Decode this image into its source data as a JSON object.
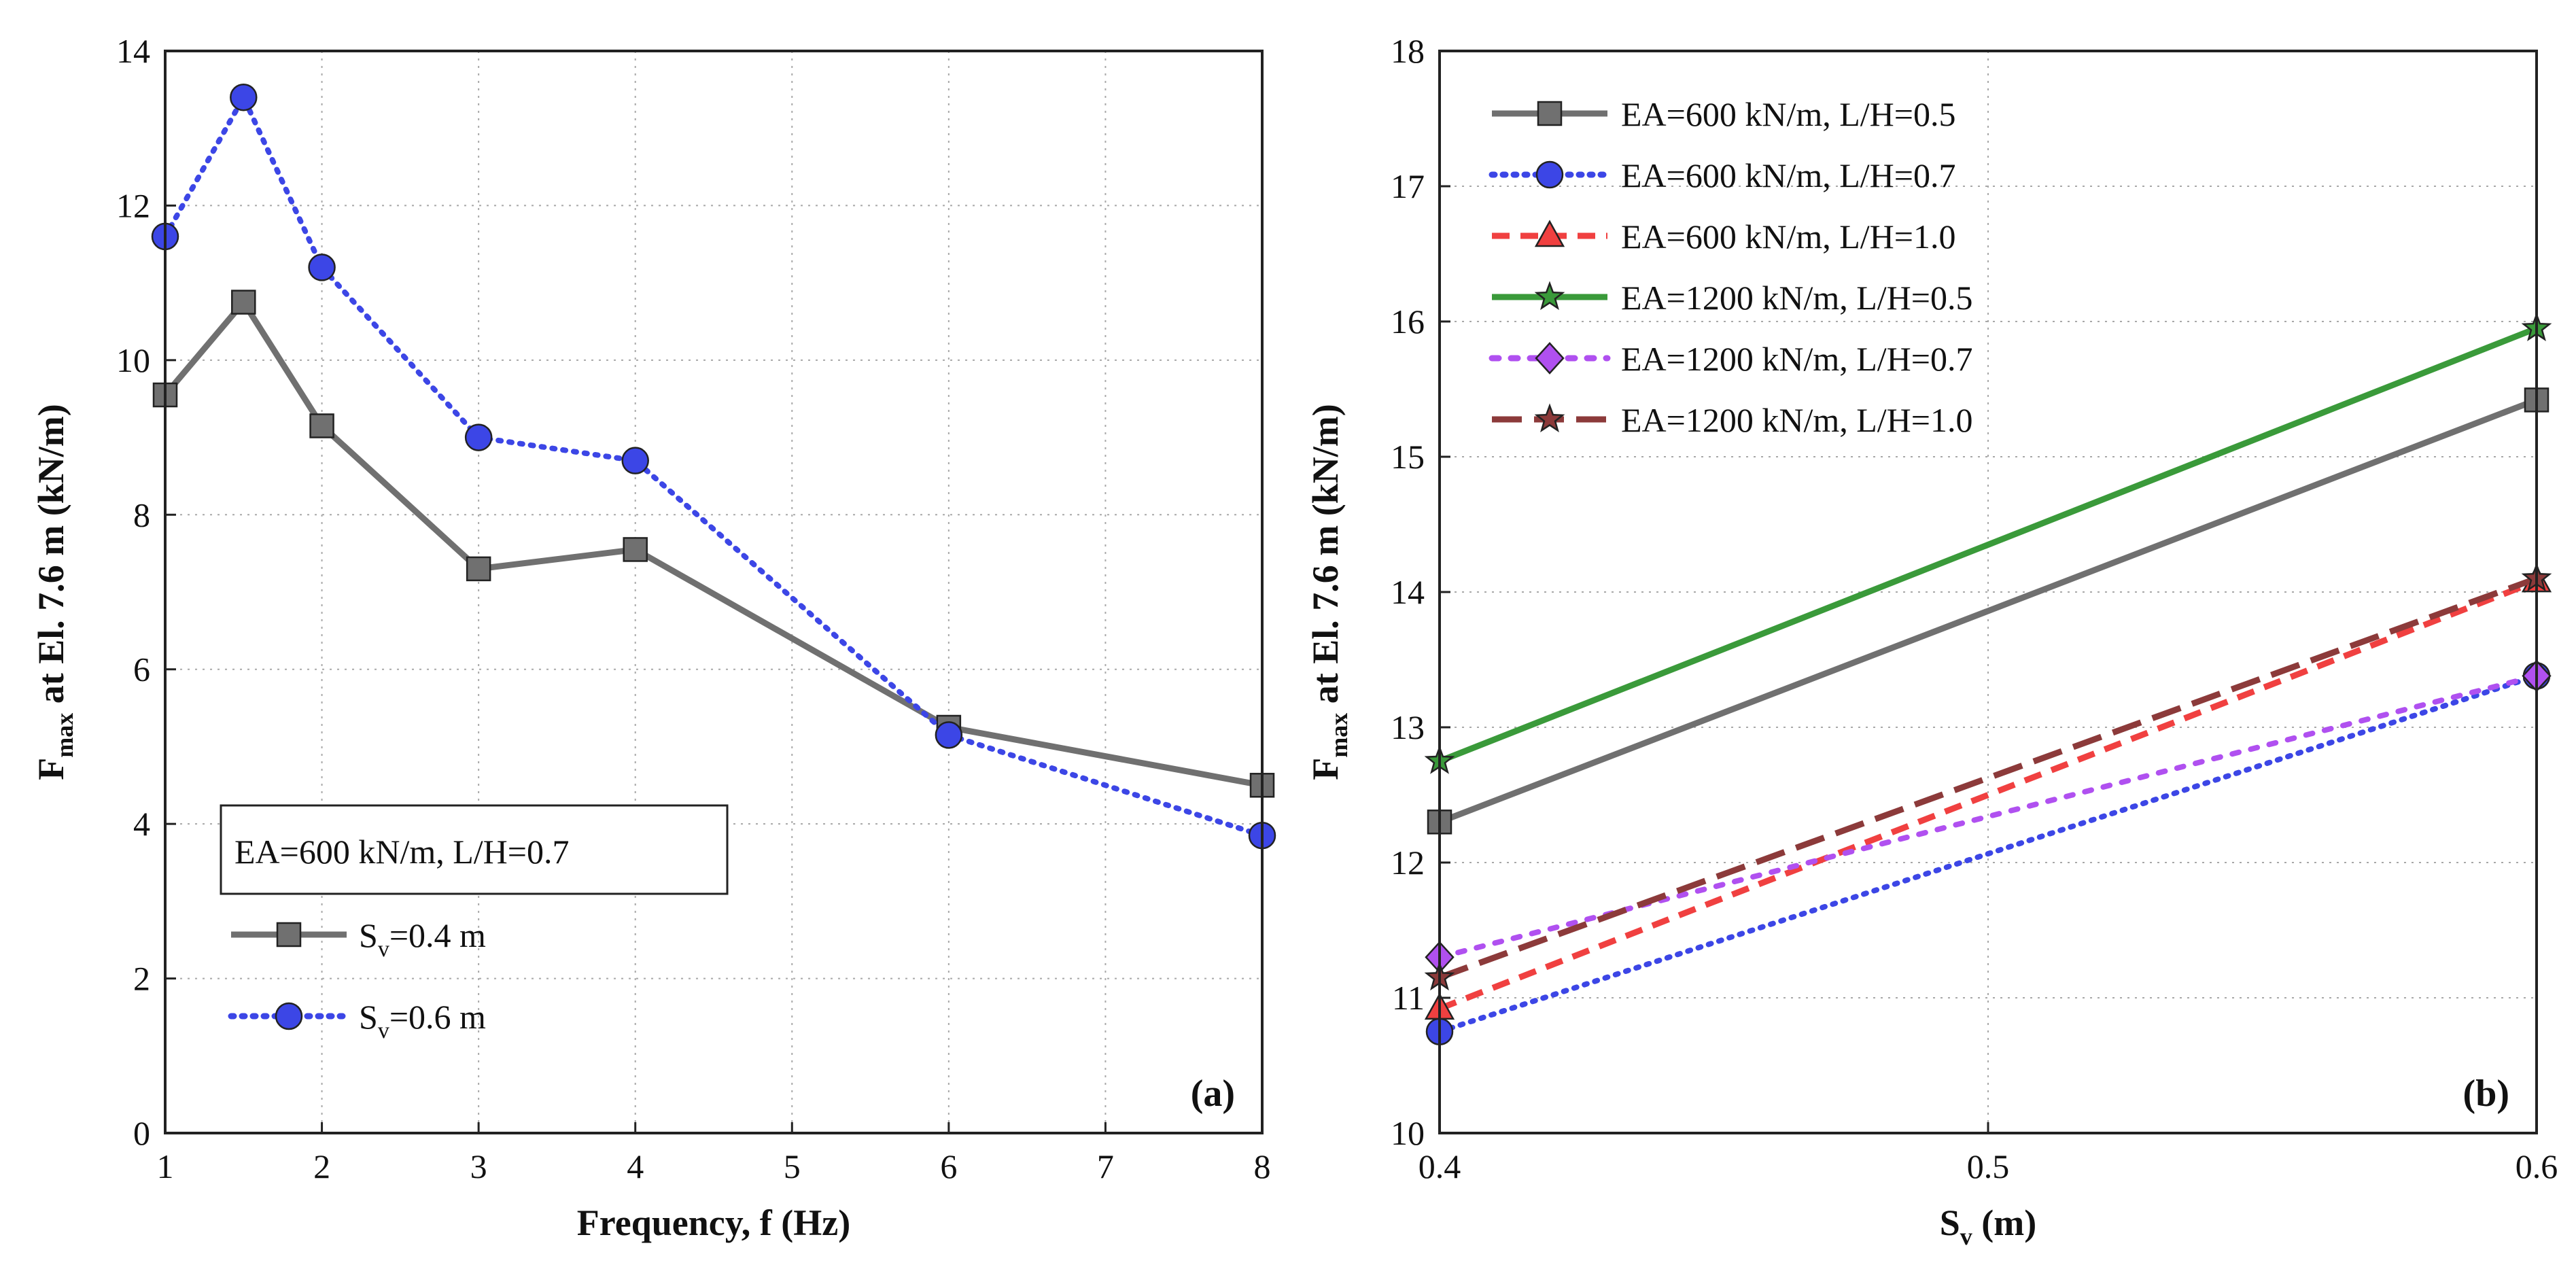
{
  "chart_data": [
    {
      "type": "line",
      "panel_label": "(a)",
      "xlabel": "Frequency, f (Hz)",
      "ylabel": {
        "main": "F",
        "sub": "max",
        "rest": " at El. 7.6 m (kN/m)"
      },
      "x_ticks": [
        1,
        2,
        3,
        4,
        5,
        6,
        7,
        8
      ],
      "y_ticks": [
        0,
        2,
        4,
        6,
        8,
        10,
        12,
        14
      ],
      "xlim": [
        1,
        8
      ],
      "ylim": [
        0,
        14
      ],
      "grid": true,
      "annotation": "EA=600 kN/m, L/H=0.7",
      "legend_position": "bottom-left",
      "series": [
        {
          "name": "Sv=0.4 m",
          "label": {
            "main": "S",
            "sub": "v",
            "rest": "=0.4 m"
          },
          "color": "#707070",
          "style": "solid",
          "marker": "square",
          "x": [
            1,
            1.5,
            2,
            3,
            4,
            6,
            8
          ],
          "y": [
            9.55,
            10.75,
            9.15,
            7.3,
            7.55,
            5.25,
            4.5
          ]
        },
        {
          "name": "Sv=0.6 m",
          "label": {
            "main": "S",
            "sub": "v",
            "rest": "=0.6 m"
          },
          "color": "#3c46e6",
          "style": "dotted",
          "marker": "circle",
          "x": [
            1,
            1.5,
            2,
            3,
            4,
            6,
            8
          ],
          "y": [
            11.6,
            13.4,
            11.2,
            9.0,
            8.7,
            5.15,
            3.85
          ]
        }
      ]
    },
    {
      "type": "line",
      "panel_label": "(b)",
      "xlabel": {
        "main": "S",
        "sub": "v",
        "rest": " (m)"
      },
      "ylabel": {
        "main": "F",
        "sub": "max",
        "rest": " at El. 7.6 m (kN/m)"
      },
      "x_ticks": [
        0.4,
        0.5,
        0.6
      ],
      "y_ticks": [
        10,
        11,
        12,
        13,
        14,
        15,
        16,
        17,
        18
      ],
      "xlim": [
        0.4,
        0.6
      ],
      "ylim": [
        10,
        18
      ],
      "grid": true,
      "legend_position": "top-left",
      "series": [
        {
          "name": "EA=600 kN/m, L/H=0.5",
          "color": "#707070",
          "style": "solid",
          "marker": "square",
          "x": [
            0.4,
            0.6
          ],
          "y": [
            12.3,
            15.42
          ]
        },
        {
          "name": "EA=600 kN/m, L/H=0.7",
          "color": "#3c46e6",
          "style": "dotted",
          "marker": "circle",
          "x": [
            0.4,
            0.6
          ],
          "y": [
            10.75,
            13.38
          ]
        },
        {
          "name": "EA=600 kN/m, L/H=1.0",
          "color": "#f04040",
          "style": "dashed",
          "marker": "triangle",
          "x": [
            0.4,
            0.6
          ],
          "y": [
            10.92,
            14.08
          ]
        },
        {
          "name": "EA=1200 kN/m, L/H=0.5",
          "color": "#3a9a3a",
          "style": "solid",
          "marker": "star",
          "x": [
            0.4,
            0.6
          ],
          "y": [
            12.75,
            15.95
          ]
        },
        {
          "name": "EA=1200 kN/m, L/H=0.7",
          "color": "#b050f0",
          "style": "dotted-wide",
          "marker": "diamond",
          "x": [
            0.4,
            0.6
          ],
          "y": [
            11.3,
            13.38
          ]
        },
        {
          "name": "EA=1200 kN/m, L/H=1.0",
          "color": "#8c3a3a",
          "style": "long-dash",
          "marker": "star",
          "x": [
            0.4,
            0.6
          ],
          "y": [
            11.15,
            14.1
          ]
        }
      ]
    }
  ]
}
